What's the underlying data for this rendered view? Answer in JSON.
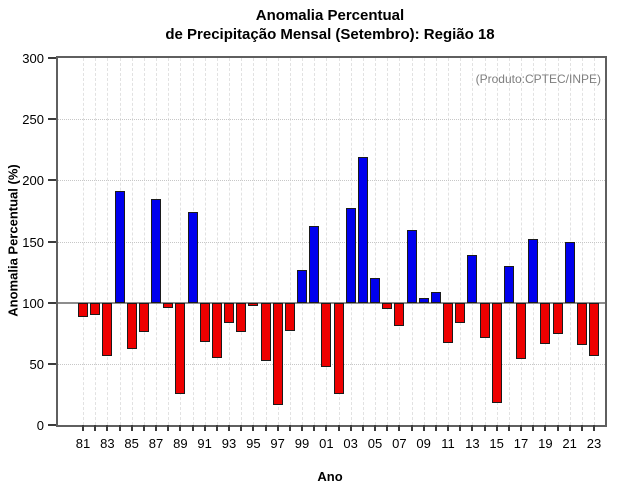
{
  "title": {
    "line1": "Anomalia Percentual",
    "line2": "de Precipitação Mensal (Setembro): Região 18"
  },
  "annotation": "(Produto:CPTEC/INPE)",
  "axes": {
    "y_label": "Anomalia Percentual (%)",
    "x_label": "Ano",
    "y_ticks": [
      0,
      50,
      100,
      150,
      200,
      250,
      300
    ],
    "x_tick_labels": [
      "81",
      "83",
      "85",
      "87",
      "89",
      "91",
      "93",
      "95",
      "97",
      "99",
      "01",
      "03",
      "05",
      "07",
      "09",
      "11",
      "13",
      "15",
      "17",
      "19",
      "21",
      "23"
    ]
  },
  "colors": {
    "above_baseline": "#0000ee",
    "below_baseline": "#ee0000",
    "bar_border": "#1b1b1b",
    "baseline_line": "#8d8d8d",
    "annotation_text": "#7e7e7e"
  },
  "chart_data": {
    "type": "bar",
    "title": "Anomalia Percentual de Precipitação Mensal (Setembro): Região 18",
    "xlabel": "Ano",
    "ylabel": "Anomalia Percentual (%)",
    "ylim": [
      0,
      300
    ],
    "baseline": 100,
    "grid": true,
    "legend_position": "none",
    "color_rule": "blue if value >= 100 else red",
    "x": [
      1981,
      1982,
      1983,
      1984,
      1985,
      1986,
      1987,
      1988,
      1989,
      1990,
      1991,
      1992,
      1993,
      1994,
      1995,
      1996,
      1997,
      1998,
      1999,
      2000,
      2001,
      2002,
      2003,
      2004,
      2005,
      2006,
      2007,
      2008,
      2009,
      2010,
      2011,
      2012,
      2013,
      2014,
      2015,
      2016,
      2017,
      2018,
      2019,
      2020,
      2021,
      2022,
      2023
    ],
    "values": [
      88,
      90,
      56,
      191,
      62,
      76,
      185,
      96,
      25,
      174,
      68,
      55,
      83,
      76,
      97,
      52,
      16,
      77,
      127,
      163,
      47,
      25,
      177,
      219,
      120,
      95,
      81,
      159,
      104,
      109,
      67,
      83,
      139,
      71,
      18,
      130,
      54,
      152,
      66,
      74,
      150,
      65,
      56
    ]
  }
}
